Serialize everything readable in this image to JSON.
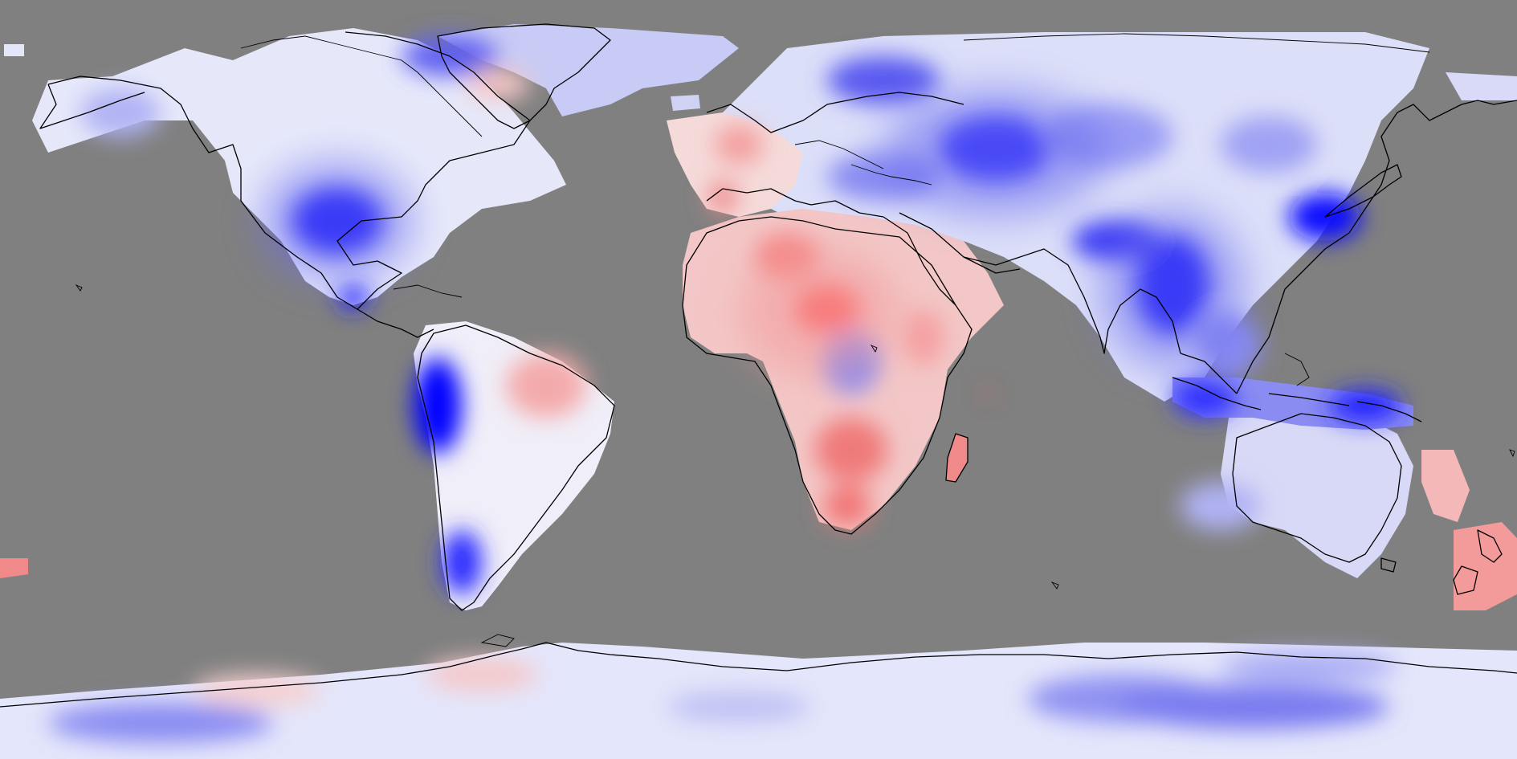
{
  "map": {
    "projection": "equirectangular",
    "background_color": "#808080",
    "scale_colors": {
      "strong_negative": "#0000ff",
      "negative": "#7a7af0",
      "weak_negative": "#d4d6f5",
      "neutral": "#ffffff",
      "weak_positive": "#f5d6d6",
      "positive": "#f08a8a",
      "strong_positive": "#ff5050"
    },
    "coastline_color": "#000000"
  }
}
